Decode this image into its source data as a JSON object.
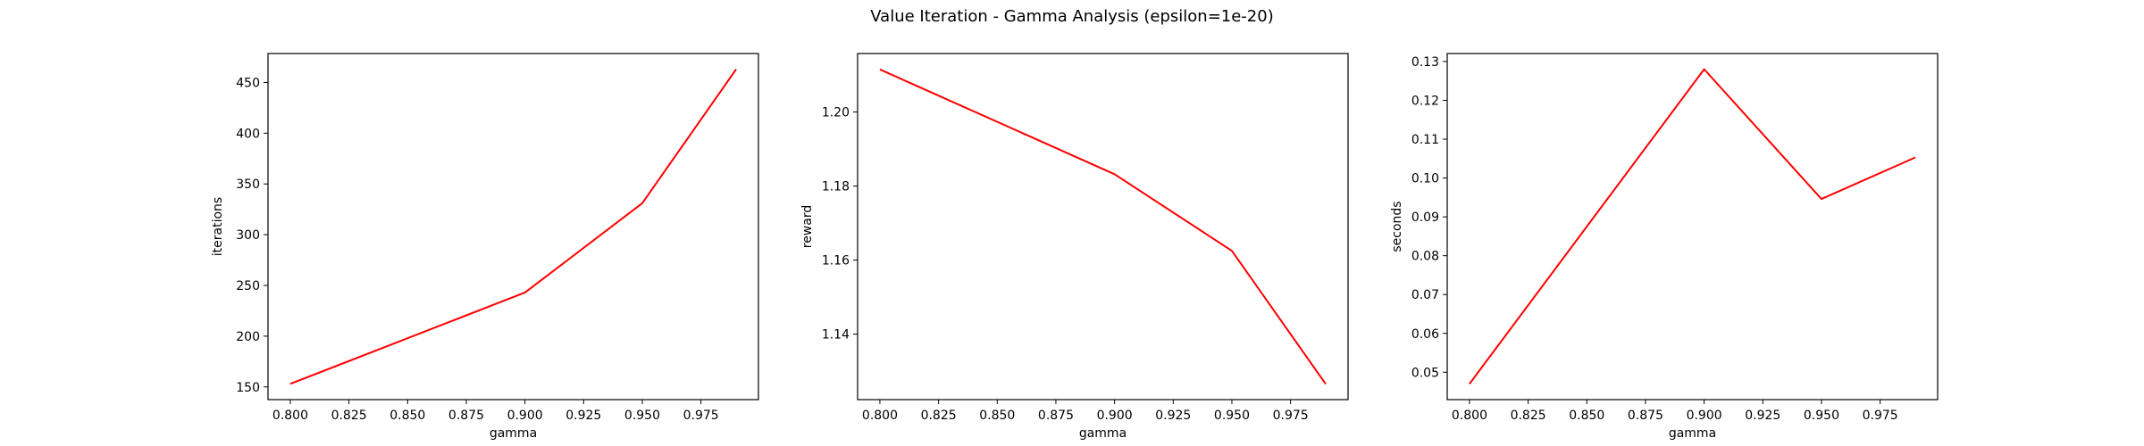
{
  "figure": {
    "suptitle": "Value Iteration - Gamma Analysis (epsilon=1e-20)",
    "line_color": "#ff0000"
  },
  "chart_data": [
    {
      "type": "line",
      "title": "",
      "xlabel": "gamma",
      "ylabel": "iterations",
      "x": [
        0.8,
        0.9,
        0.95,
        0.99
      ],
      "y": [
        153,
        243,
        331,
        463
      ],
      "xlim": [
        0.7905,
        0.9995
      ],
      "ylim": [
        137.5,
        478.5
      ],
      "xticks": [
        "0.800",
        "0.825",
        "0.850",
        "0.875",
        "0.900",
        "0.925",
        "0.950",
        "0.975"
      ],
      "yticks": [
        "150",
        "200",
        "250",
        "300",
        "350",
        "400",
        "450"
      ],
      "grid": false,
      "legend": "none"
    },
    {
      "type": "line",
      "title": "",
      "xlabel": "gamma",
      "ylabel": "reward",
      "x": [
        0.8,
        0.9,
        0.95,
        0.99
      ],
      "y": [
        1.2115,
        1.1832,
        1.1625,
        1.1265
      ],
      "xlim": [
        0.7905,
        0.9995
      ],
      "ylim": [
        1.1223,
        1.2158
      ],
      "xticks": [
        "0.800",
        "0.825",
        "0.850",
        "0.875",
        "0.900",
        "0.925",
        "0.950",
        "0.975"
      ],
      "yticks": [
        "1.14",
        "1.16",
        "1.18",
        "1.20"
      ],
      "grid": false,
      "legend": "none"
    },
    {
      "type": "line",
      "title": "",
      "xlabel": "gamma",
      "ylabel": "seconds",
      "x": [
        0.8,
        0.9,
        0.95,
        0.99
      ],
      "y": [
        0.047,
        0.128,
        0.0946,
        0.1053
      ],
      "xlim": [
        0.7905,
        0.9995
      ],
      "ylim": [
        0.04295,
        0.13205
      ],
      "xticks": [
        "0.800",
        "0.825",
        "0.850",
        "0.875",
        "0.900",
        "0.925",
        "0.950",
        "0.975"
      ],
      "yticks": [
        "0.05",
        "0.06",
        "0.07",
        "0.08",
        "0.09",
        "0.10",
        "0.11",
        "0.12",
        "0.13"
      ],
      "grid": false,
      "legend": "none"
    }
  ]
}
